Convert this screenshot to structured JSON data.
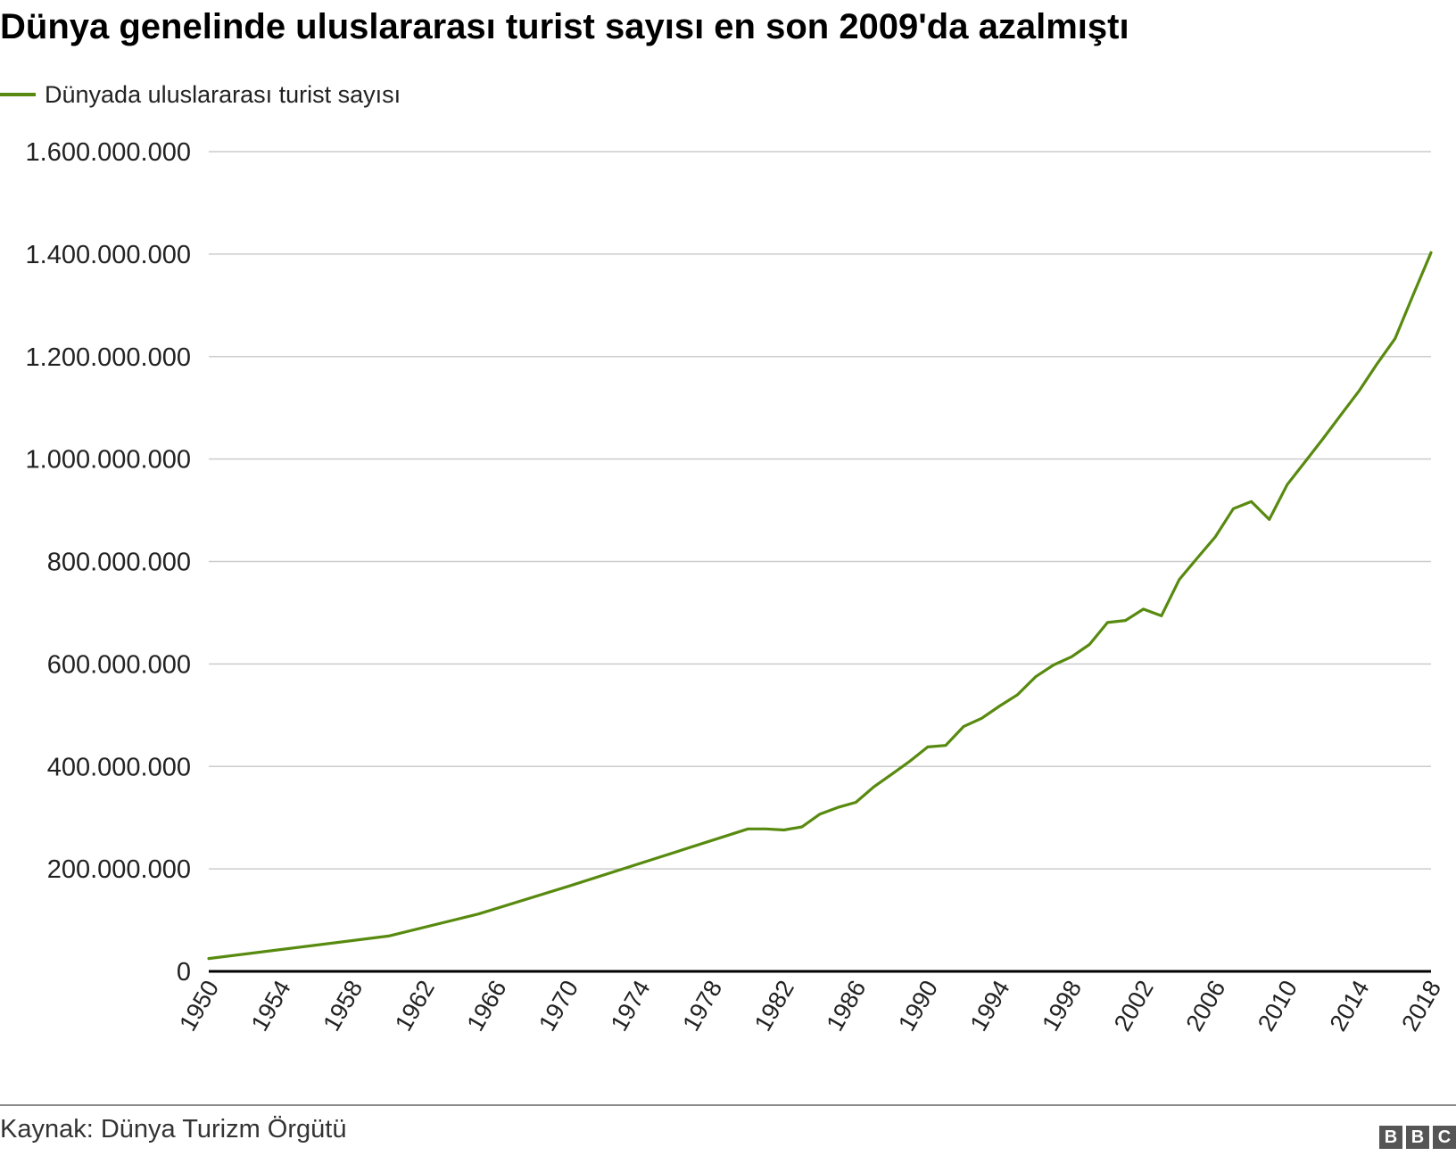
{
  "title": "Dünya genelinde uluslararası turist sayısı en son 2009'da azalmıştı",
  "legend": {
    "label": "Dünyada uluslararası turist sayısı",
    "color": "#588a0f"
  },
  "source": "Kaynak: Dünya Turizm Örgütü",
  "logo": {
    "letters": [
      "B",
      "B",
      "C"
    ],
    "color": "#555555"
  },
  "chart_data": {
    "type": "line",
    "title": "Dünya genelinde uluslararası turist sayısı en son 2009'da azalmıştı",
    "xlabel": "",
    "ylabel": "",
    "xlim": [
      1950,
      2018
    ],
    "ylim": [
      0,
      1600000000
    ],
    "grid": true,
    "legend_position": "top-left",
    "y_ticks": [
      0,
      200000000,
      400000000,
      600000000,
      800000000,
      1000000000,
      1200000000,
      1400000000,
      1600000000
    ],
    "y_tick_labels": [
      "0",
      "200.000.000",
      "400.000.000",
      "600.000.000",
      "800.000.000",
      "1.000.000.000",
      "1.200.000.000",
      "1.400.000.000",
      "1.600.000.000"
    ],
    "x_ticks": [
      1950,
      1954,
      1958,
      1962,
      1966,
      1970,
      1974,
      1978,
      1982,
      1986,
      1990,
      1994,
      1998,
      2002,
      2006,
      2010,
      2014,
      2018
    ],
    "x_tick_labels": [
      "1950",
      "1954",
      "1958",
      "1962",
      "1966",
      "1970",
      "1974",
      "1978",
      "1982",
      "1986",
      "1990",
      "1994",
      "1998",
      "2002",
      "2006",
      "2010",
      "2014",
      "2018"
    ],
    "series": [
      {
        "name": "Dünyada uluslararası turist sayısı",
        "color": "#588a0f",
        "x": [
          1950,
          1960,
          1965,
          1970,
          1975,
          1980,
          1981,
          1982,
          1983,
          1984,
          1985,
          1986,
          1987,
          1988,
          1989,
          1990,
          1991,
          1992,
          1993,
          1994,
          1995,
          1996,
          1997,
          1998,
          1999,
          2000,
          2001,
          2002,
          2003,
          2004,
          2005,
          2006,
          2007,
          2008,
          2009,
          2010,
          2011,
          2012,
          2013,
          2014,
          2015,
          2016,
          2017,
          2018
        ],
        "values": [
          25000000,
          69000000,
          112000000,
          166000000,
          222000000,
          278000000,
          278000000,
          276000000,
          282000000,
          307000000,
          320000000,
          330000000,
          360000000,
          385000000,
          410000000,
          438000000,
          441000000,
          478000000,
          494000000,
          518000000,
          540000000,
          575000000,
          598000000,
          614000000,
          638000000,
          681000000,
          685000000,
          707000000,
          694000000,
          765000000,
          807000000,
          848000000,
          903000000,
          917000000,
          882000000,
          950000000,
          995000000,
          1040000000,
          1087000000,
          1133000000,
          1186000000,
          1235000000,
          1320000000,
          1403000000
        ]
      }
    ]
  }
}
